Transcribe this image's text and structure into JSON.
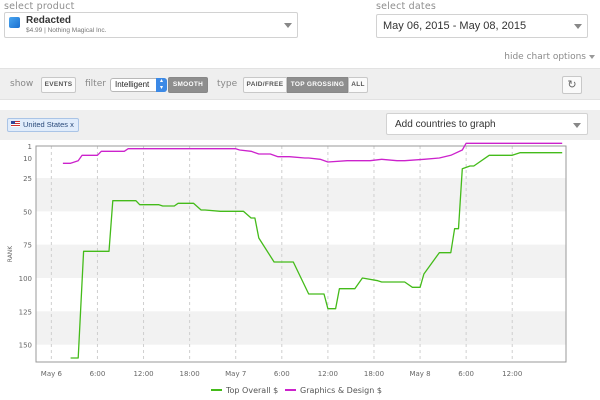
{
  "product": {
    "label": "select product",
    "name": "Redacted",
    "price_developer": "$4.99 | Nothing Magical Inc."
  },
  "dates": {
    "label": "select dates",
    "value": "May 06, 2015 - May 08, 2015"
  },
  "hide_chart_options": "hide chart options",
  "options": {
    "show_label": "show",
    "events_button": "EVENTS",
    "filter_label": "filter",
    "filter_value": "Intelligent",
    "smooth_button": "SMOOTH",
    "type_label": "type",
    "type_buttons": [
      "PAID/FREE",
      "TOP GROSSING",
      "ALL"
    ],
    "type_selected": "TOP GROSSING",
    "refresh_icon": "refresh-icon"
  },
  "countries": {
    "chip": "United States x",
    "add_placeholder": "Add countries to graph"
  },
  "colors": {
    "top_overall": "#44bb1a",
    "graphics_design": "#cc22cc",
    "band": "#f2f2f2",
    "refresh_active": "#3b89e6"
  },
  "chart_data": {
    "type": "line",
    "ylabel": "RANK",
    "y_inverted": true,
    "ylim": [
      1,
      163
    ],
    "y_ticks": [
      1,
      10,
      25,
      50,
      75,
      100,
      125,
      150
    ],
    "y_tick_labels": [
      "1",
      "10",
      "25",
      "50",
      "75",
      "100",
      "125",
      "150"
    ],
    "x_range_hours": [
      -2,
      67
    ],
    "x_ticks": [
      0,
      6,
      12,
      18,
      24,
      30,
      36,
      42,
      48,
      54,
      60
    ],
    "x_tick_labels": [
      "May 6",
      "6:00",
      "12:00",
      "18:00",
      "May 7",
      "6:00",
      "12:00",
      "18:00",
      "May 8",
      "6:00",
      "12:00"
    ],
    "grid": "dashed vertical, alternating horizontal bands",
    "legend_position": "bottom-center",
    "series": [
      {
        "name": "Top Overall $",
        "color": "#44bb1a",
        "x": [
          2.5,
          3.5,
          4.2,
          7,
          7.5,
          8,
          11,
          11.5,
          14,
          14.5,
          16,
          16.5,
          18.5,
          19.5,
          20,
          22,
          22.5,
          25,
          26,
          26.5,
          27,
          29,
          31.5,
          32.5,
          33.5,
          34,
          35.5,
          36,
          37,
          37.5,
          39,
          39.5,
          40.5,
          42.5,
          43,
          45,
          46,
          47,
          47.5,
          48,
          48.5,
          50.5,
          51,
          52,
          52.5,
          53,
          53.5,
          54.5,
          55,
          57,
          57.5,
          60,
          61,
          66.5
        ],
        "y": [
          160,
          160,
          80,
          80,
          80,
          42,
          42,
          45,
          45,
          46,
          46,
          44,
          44,
          49,
          49,
          50,
          50,
          50,
          55,
          55,
          70,
          88,
          88,
          100,
          112,
          112,
          112,
          123,
          123,
          108,
          108,
          108,
          100,
          102,
          103,
          103,
          103,
          107,
          107,
          107,
          97,
          81,
          81,
          81,
          63,
          63,
          18,
          16,
          16,
          8,
          8,
          8,
          6,
          6
        ]
      },
      {
        "name": "Graphics & Design $",
        "color": "#cc22cc",
        "x": [
          1.5,
          2.5,
          3.5,
          4,
          6,
          6.5,
          9.5,
          10,
          14.5,
          15,
          24,
          24.5,
          26,
          27,
          28.5,
          29.5,
          31,
          33,
          33.5,
          35,
          36,
          38.5,
          40.5,
          41.5,
          43,
          45,
          46,
          48.5,
          50.5,
          52,
          53.5,
          54,
          66.5
        ],
        "y": [
          14,
          14,
          12,
          8,
          8,
          5,
          5,
          3,
          3,
          3,
          3,
          4,
          5,
          7,
          7,
          9,
          9,
          10,
          10,
          11,
          13,
          12,
          12,
          12,
          11,
          12,
          12,
          11,
          10,
          8,
          4,
          -1,
          -1
        ]
      }
    ]
  }
}
